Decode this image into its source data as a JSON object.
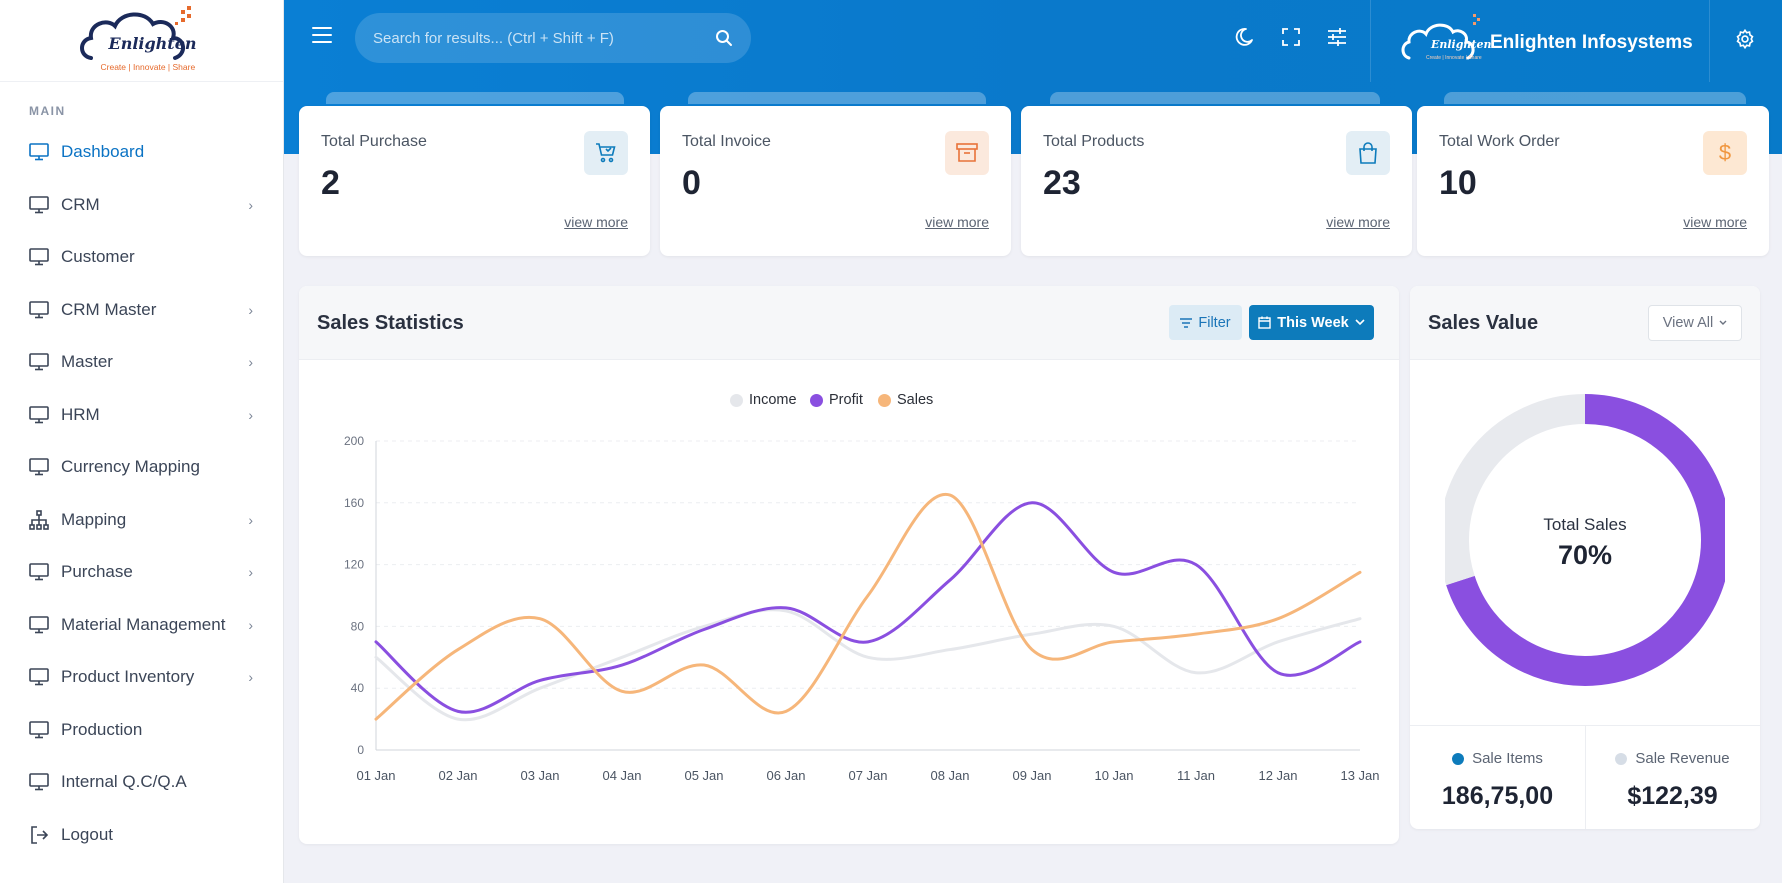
{
  "brand": {
    "logo_text": "Enlighten",
    "logo_tagline": "Create | Innovate | Share",
    "company_name": "Enlighten Infosystems"
  },
  "search": {
    "placeholder": "Search for results... (Ctrl + Shift + F)"
  },
  "sidebar": {
    "section": "MAIN",
    "items": [
      {
        "label": "Dashboard",
        "icon": "monitor-icon",
        "has_submenu": false,
        "active": true
      },
      {
        "label": "CRM",
        "icon": "monitor-icon",
        "has_submenu": true
      },
      {
        "label": "Customer",
        "icon": "monitor-icon",
        "has_submenu": false
      },
      {
        "label": "CRM Master",
        "icon": "monitor-icon",
        "has_submenu": true
      },
      {
        "label": "Master",
        "icon": "monitor-icon",
        "has_submenu": true
      },
      {
        "label": "HRM",
        "icon": "monitor-icon",
        "has_submenu": true
      },
      {
        "label": "Currency Mapping",
        "icon": "monitor-icon",
        "has_submenu": false
      },
      {
        "label": "Mapping",
        "icon": "sitemap-icon",
        "has_submenu": true
      },
      {
        "label": "Purchase",
        "icon": "monitor-icon",
        "has_submenu": true
      },
      {
        "label": "Material Management",
        "icon": "monitor-icon",
        "has_submenu": true
      },
      {
        "label": "Product Inventory",
        "icon": "monitor-icon",
        "has_submenu": true
      },
      {
        "label": "Production",
        "icon": "monitor-icon",
        "has_submenu": false
      },
      {
        "label": "Internal Q.C/Q.A",
        "icon": "monitor-icon",
        "has_submenu": false
      },
      {
        "label": "Logout",
        "icon": "logout-icon",
        "has_submenu": false
      }
    ]
  },
  "stats": [
    {
      "title": "Total Purchase",
      "value": "2",
      "link": "view more",
      "icon": "cart-icon",
      "color": "#0d7bbb",
      "bg": "#e3eef5"
    },
    {
      "title": "Total Invoice",
      "value": "0",
      "link": "view more",
      "icon": "archive-icon",
      "color": "#e8733a",
      "bg": "#fbe9dd"
    },
    {
      "title": "Total Products",
      "value": "23",
      "link": "view more",
      "icon": "bag-icon",
      "color": "#0d7bbb",
      "bg": "#e3eef5"
    },
    {
      "title": "Total Work Order",
      "value": "10",
      "link": "view more",
      "icon": "dollar-icon",
      "color": "#f0963f",
      "bg": "#fde8d3"
    }
  ],
  "sales_stats": {
    "title": "Sales Statistics",
    "filter_label": "Filter",
    "range_label": "This Week"
  },
  "sales_value": {
    "title": "Sales Value",
    "view_all_label": "View All",
    "center_label": "Total Sales",
    "center_value": "70%",
    "items_label": "Sale Items",
    "items_value": "186,75,00",
    "revenue_label": "Sale Revenue",
    "revenue_value": "$122,39"
  },
  "colors": {
    "accent": "#0a79cb",
    "income": "#e5e7eb",
    "profit": "#8a4fe0",
    "sales": "#f6b67a"
  },
  "chart_data": [
    {
      "type": "line",
      "x": [
        "01 Jan",
        "02 Jan",
        "03 Jan",
        "04 Jan",
        "05 Jan",
        "06 Jan",
        "07 Jan",
        "08 Jan",
        "09 Jan",
        "10 Jan",
        "11 Jan",
        "12 Jan",
        "13 Jan"
      ],
      "ylim": [
        0,
        200
      ],
      "yticks": [
        0,
        40,
        80,
        120,
        160,
        200
      ],
      "grid": true,
      "legend_position": "top",
      "series": [
        {
          "name": "Income",
          "color": "#e5e7eb",
          "values": [
            60,
            20,
            40,
            60,
            80,
            90,
            60,
            65,
            75,
            80,
            50,
            70,
            85
          ]
        },
        {
          "name": "Profit",
          "color": "#8a4fe0",
          "values": [
            70,
            25,
            45,
            55,
            78,
            92,
            70,
            110,
            160,
            115,
            120,
            50,
            70
          ]
        },
        {
          "name": "Sales",
          "color": "#f6b67a",
          "values": [
            20,
            65,
            85,
            38,
            55,
            25,
            100,
            165,
            65,
            70,
            75,
            85,
            115
          ]
        }
      ]
    },
    {
      "type": "pie",
      "categories": [
        "Total Sales",
        "Remaining"
      ],
      "values": [
        70,
        30
      ],
      "colors": [
        "#8a4fe0",
        "#e8eaee"
      ]
    }
  ]
}
